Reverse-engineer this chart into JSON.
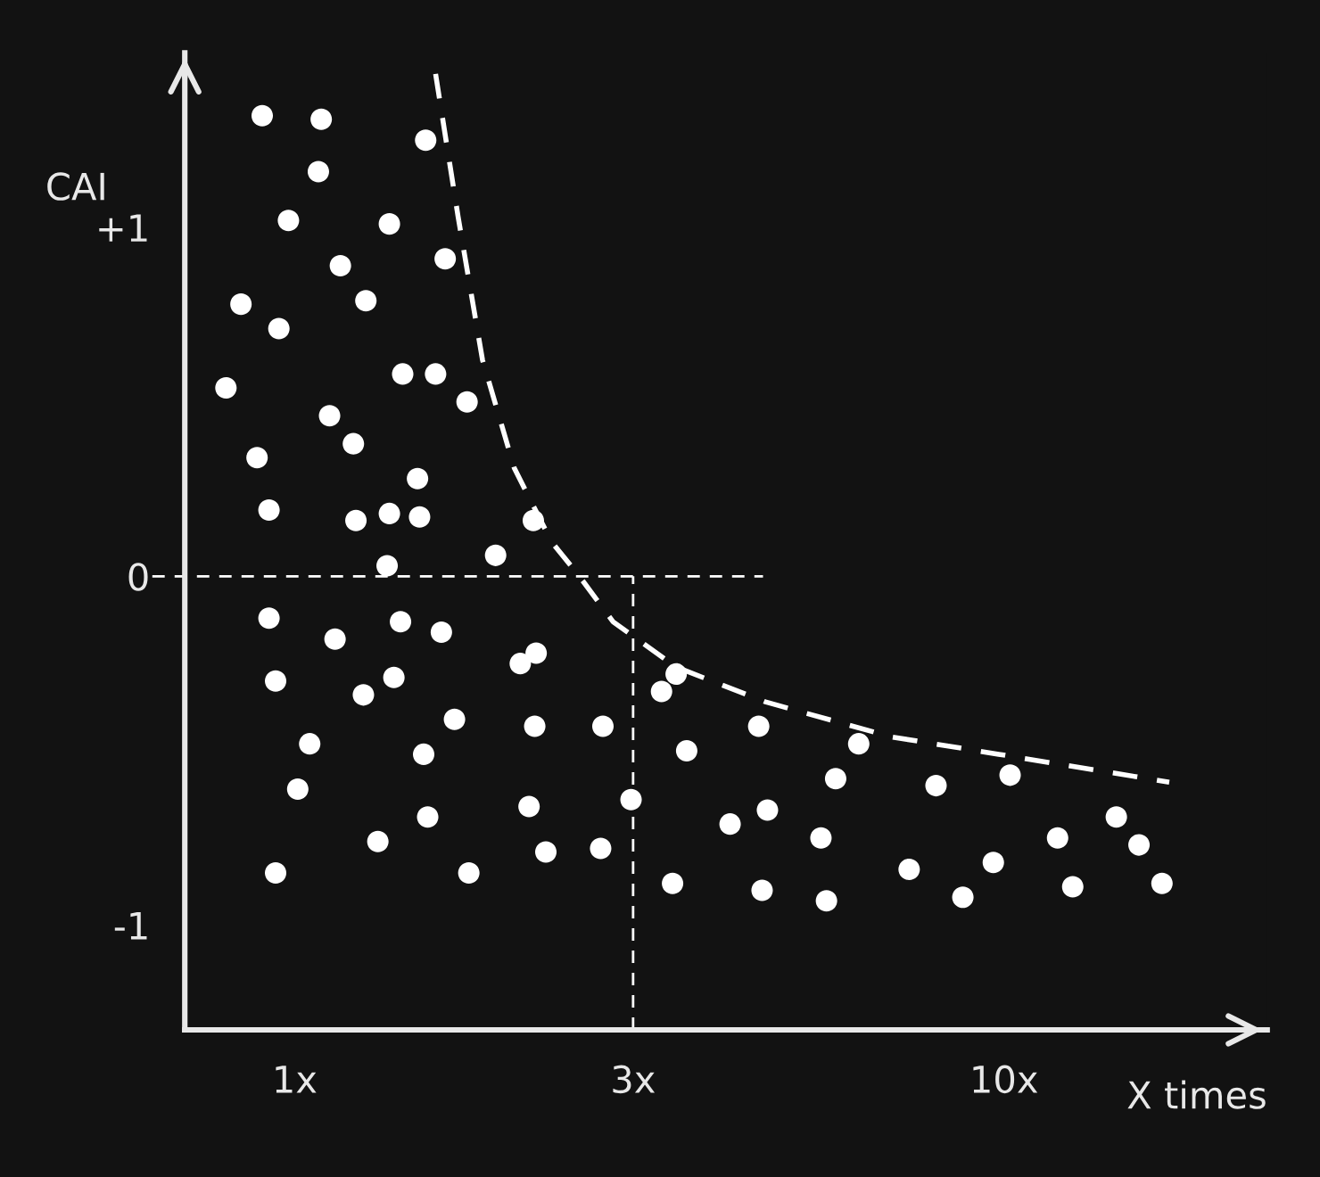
{
  "chart_data": {
    "type": "scatter",
    "ylabel": "CAI",
    "xlabel": "X times",
    "xlim": [
      0.7,
      23.5
    ],
    "ylim": [
      -1.3,
      1.5
    ],
    "xticks": [
      {
        "value": 1,
        "label": "1x"
      },
      {
        "value": 3,
        "label": "3x"
      },
      {
        "value": 10,
        "label": "10x"
      }
    ],
    "yticks": [
      {
        "value": 1,
        "label": "+1"
      },
      0,
      {
        "value": -1,
        "label": "-1"
      }
    ],
    "log": "x",
    "grid": false,
    "legend": false,
    "marker": "circle",
    "ref_lines": [
      {
        "axis": "y",
        "value": 0,
        "color": "#ffffff",
        "line_style": "dashed"
      },
      {
        "axis": "x",
        "value": 3,
        "color": "#ffffff",
        "line_style": "dashed"
      }
    ],
    "series": [
      {
        "type": "scatter",
        "color": "#ffffff",
        "x": [
          0.9,
          1.09,
          1.53,
          1.08,
          0.98,
          1.36,
          1.16,
          1.63,
          0.84,
          1.26,
          0.95,
          0.8,
          1.42,
          1.58,
          1.12,
          1.75,
          0.885,
          1.21,
          1.49,
          0.92,
          1.22,
          1.36,
          1.5,
          1.92,
          2.17,
          1.35,
          0.92,
          1.14,
          1.41,
          1.61,
          0.94,
          1.25,
          1.38,
          2.08,
          2.19,
          3.45,
          3.29,
          1.05,
          1.68,
          2.18,
          2.72,
          3.57,
          4.51,
          6.24,
          1.52,
          1.01,
          2.14,
          2.98,
          5.79,
          8.02,
          10.2,
          1.54,
          1.31,
          2.26,
          2.7,
          4.11,
          4.64,
          5.52,
          14.4,
          0.94,
          1.76,
          3.41,
          4.56,
          5.62,
          7.35,
          8.75,
          9.66,
          11.9,
          12.5,
          15.5,
          16.7
        ],
        "values": [
          1.32,
          1.31,
          1.25,
          1.16,
          1.02,
          1.01,
          0.89,
          0.91,
          0.78,
          0.79,
          0.71,
          0.54,
          0.58,
          0.58,
          0.46,
          0.5,
          0.34,
          0.38,
          0.28,
          0.19,
          0.16,
          0.18,
          0.17,
          0.06,
          0.16,
          0.03,
          -0.12,
          -0.18,
          -0.13,
          -0.16,
          -0.3,
          -0.34,
          -0.29,
          -0.25,
          -0.22,
          -0.28,
          -0.33,
          -0.48,
          -0.41,
          -0.43,
          -0.43,
          -0.5,
          -0.43,
          -0.48,
          -0.51,
          -0.61,
          -0.66,
          -0.64,
          -0.58,
          -0.6,
          -0.57,
          -0.69,
          -0.76,
          -0.79,
          -0.78,
          -0.71,
          -0.67,
          -0.75,
          -0.69,
          -0.85,
          -0.85,
          -0.88,
          -0.9,
          -0.93,
          -0.84,
          -0.92,
          -0.82,
          -0.75,
          -0.89,
          -0.77,
          -0.88
        ]
      },
      {
        "type": "line",
        "color": "#ffffff",
        "line_style": "dashed",
        "marker": "none",
        "x": [
          1.58,
          1.7,
          1.84,
          2.04,
          2.3,
          2.52,
          2.81,
          3.45,
          4.61,
          6.93,
          9.83,
          17.1
        ],
        "values": [
          1.44,
          1.03,
          0.62,
          0.31,
          0.1,
          0,
          -0.13,
          -0.26,
          -0.36,
          -0.46,
          -0.51,
          -0.59
        ]
      }
    ]
  }
}
